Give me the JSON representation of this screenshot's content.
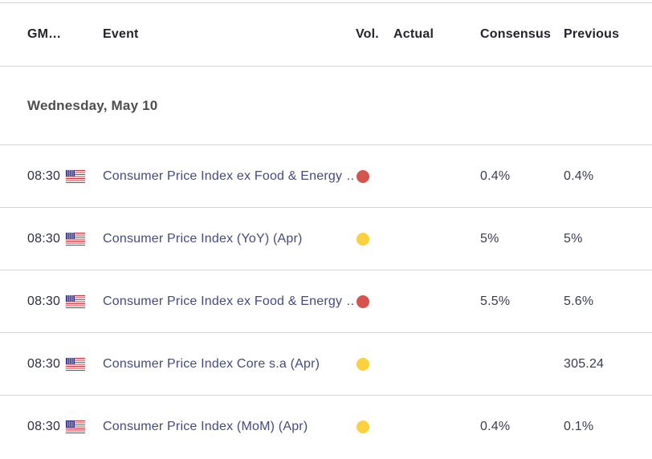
{
  "table": {
    "header": {
      "gmt_label": "GM…",
      "event_label": "Event",
      "vol_label": "Vol.",
      "actual_label": "Actual",
      "consensus_label": "Consensus",
      "previous_label": "Previous"
    },
    "section": {
      "date_label": "Wednesday, May 10"
    },
    "rows": [
      {
        "time": "08:30",
        "flag": "us-flag-icon",
        "event": "Consumer Price Index ex Food & Energy …",
        "volatility": "high",
        "actual": "",
        "consensus": "0.4%",
        "previous": "0.4%"
      },
      {
        "time": "08:30",
        "flag": "us-flag-icon",
        "event": "Consumer Price Index (YoY) (Apr)",
        "volatility": "medium",
        "actual": "",
        "consensus": "5%",
        "previous": "5%"
      },
      {
        "time": "08:30",
        "flag": "us-flag-icon",
        "event": "Consumer Price Index ex Food & Energy …",
        "volatility": "high",
        "actual": "",
        "consensus": "5.5%",
        "previous": "5.6%"
      },
      {
        "time": "08:30",
        "flag": "us-flag-icon",
        "event": "Consumer Price Index Core s.a (Apr)",
        "volatility": "medium",
        "actual": "",
        "consensus": "",
        "previous": "305.24"
      },
      {
        "time": "08:30",
        "flag": "us-flag-icon",
        "event": "Consumer Price Index (MoM) (Apr)",
        "volatility": "medium",
        "actual": "",
        "consensus": "0.4%",
        "previous": "0.1%"
      }
    ],
    "colors": {
      "high_volatility": "#d9534e",
      "medium_volatility": "#fcd13c",
      "event_link": "#43498b",
      "row_border": "#d6d6d6"
    }
  }
}
